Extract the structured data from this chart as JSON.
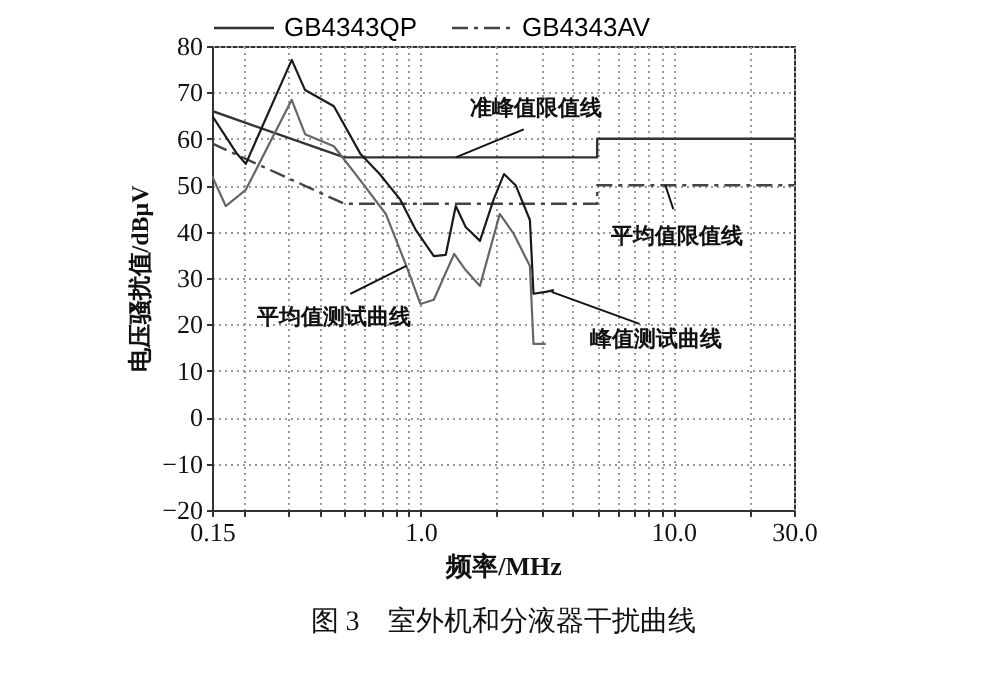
{
  "chart_data": {
    "type": "line",
    "title": "图 3　室外机和分液器干扰曲线",
    "xlabel": "频率/MHz",
    "ylabel": "电压骚扰值/dBμV",
    "log": "x",
    "xlim": [
      0.15,
      30
    ],
    "ylim": [
      -20,
      80
    ],
    "xticks": [
      {
        "value": 0.15,
        "label": "0.15"
      },
      {
        "value": 0.2,
        "label": null
      },
      {
        "value": 0.3,
        "label": null
      },
      {
        "value": 0.4,
        "label": null
      },
      {
        "value": 0.5,
        "label": null
      },
      {
        "value": 0.6,
        "label": null
      },
      {
        "value": 0.7,
        "label": null
      },
      {
        "value": 0.8,
        "label": null
      },
      {
        "value": 0.9,
        "label": null
      },
      {
        "value": 1,
        "label": "1.0"
      },
      {
        "value": 2,
        "label": null
      },
      {
        "value": 3,
        "label": null
      },
      {
        "value": 4,
        "label": null
      },
      {
        "value": 5,
        "label": null
      },
      {
        "value": 6,
        "label": null
      },
      {
        "value": 7,
        "label": null
      },
      {
        "value": 8,
        "label": null
      },
      {
        "value": 9,
        "label": null
      },
      {
        "value": 10,
        "label": "10.0"
      },
      {
        "value": 20,
        "label": null
      },
      {
        "value": 30,
        "label": "30.0"
      }
    ],
    "yticks": [
      -20,
      -10,
      0,
      10,
      20,
      30,
      40,
      50,
      60,
      70,
      80
    ],
    "grid": true,
    "legend": "top",
    "series": [
      {
        "name": "GB4343QP",
        "color": "#333333",
        "line_style": "solid",
        "x": [
          0.15,
          0.5,
          5,
          5,
          30
        ],
        "values": [
          66,
          56,
          56,
          60,
          60
        ]
      },
      {
        "name": "GB4343AV",
        "color": "#444444",
        "line_style": "dashdot",
        "x": [
          0.15,
          0.5,
          5,
          5,
          30
        ],
        "values": [
          59,
          46,
          46,
          50,
          50
        ]
      },
      {
        "color": "#1a1a1a",
        "line_style": "solid",
        "x": [
          0.15,
          0.187,
          0.204,
          0.31,
          0.35,
          0.455,
          0.58,
          0.69,
          0.83,
          0.96,
          1.13,
          1.26,
          1.38,
          1.51,
          1.72,
          1.95,
          2.14,
          2.38,
          2.71,
          2.8,
          3.13,
          3.37
        ],
        "values": [
          65,
          57,
          54.6,
          77,
          70.5,
          67,
          56.7,
          52.4,
          47,
          40.3,
          34.7,
          35,
          45.5,
          41,
          38,
          47,
          52.4,
          50,
          42.5,
          26.6,
          27,
          27.4
        ]
      },
      {
        "color": "#666666",
        "line_style": "solid",
        "x": [
          0.15,
          0.17,
          0.204,
          0.31,
          0.35,
          0.455,
          0.58,
          0.73,
          0.88,
          1.0,
          1.13,
          1.36,
          1.51,
          1.72,
          2.06,
          2.34,
          2.71,
          2.8,
          3.13
        ],
        "values": [
          52,
          45.5,
          49,
          68.4,
          61,
          58.4,
          51,
          43.8,
          32.6,
          24.4,
          25.3,
          35.2,
          31.7,
          28.3,
          43.8,
          39.5,
          32.6,
          15.8,
          15.8
        ]
      }
    ],
    "annotations": [
      {
        "text": "准峰值限值线",
        "x": 1.38,
        "y": 56
      },
      {
        "text": "平均值限值线",
        "x": 9.3,
        "y": 50
      },
      {
        "text": "平均值测试曲线",
        "x": 0.88,
        "y": 32.6
      },
      {
        "text": "峰值测试曲线",
        "x": 3.3,
        "y": 27
      }
    ]
  }
}
